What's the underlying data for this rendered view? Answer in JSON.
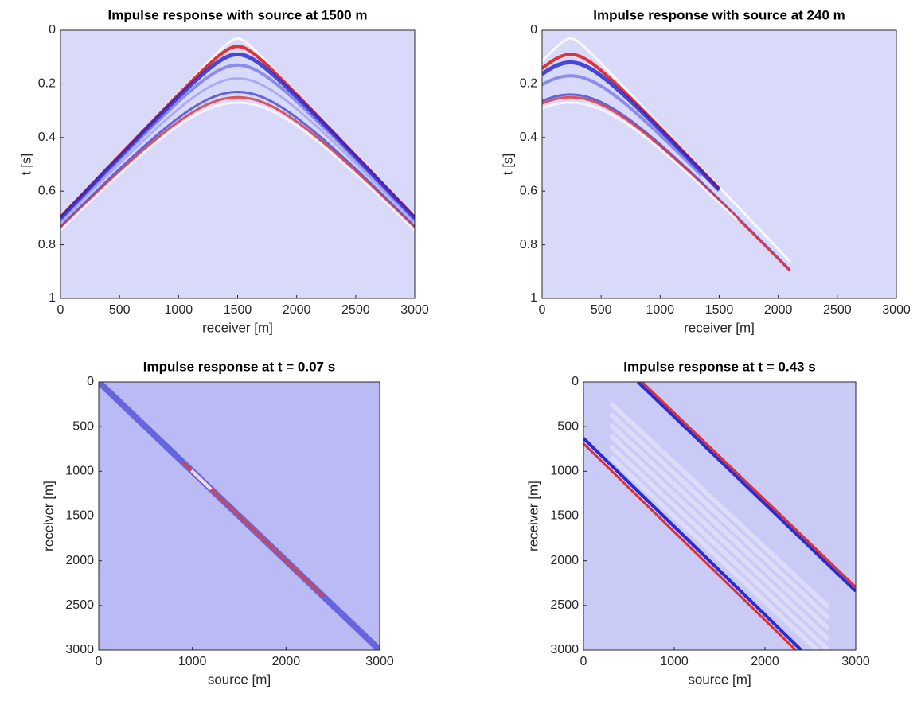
{
  "chart_data": [
    {
      "type": "heatmap",
      "title": "Impulse response with source at 1500 m",
      "xlabel": "receiver [m]",
      "ylabel": "t [s]",
      "xlim": [
        0,
        3000
      ],
      "ylim": [
        0,
        1
      ],
      "y_reversed": true,
      "xticks": [
        0,
        500,
        1000,
        1500,
        2000,
        2500,
        3000
      ],
      "yticks": [
        0,
        0.2,
        0.4,
        0.6,
        0.8,
        1
      ],
      "background": "#d9d9fa"
    },
    {
      "type": "heatmap",
      "title": "Impulse response with source  at 240 m",
      "xlabel": "receiver [m]",
      "ylabel": "t [s]",
      "xlim": [
        0,
        3000
      ],
      "ylim": [
        0,
        1
      ],
      "y_reversed": true,
      "xticks": [
        0,
        500,
        1000,
        1500,
        2000,
        2500,
        3000
      ],
      "yticks": [
        0,
        0.2,
        0.4,
        0.6,
        0.8,
        1
      ],
      "background": "#d9d9fa"
    },
    {
      "type": "heatmap",
      "title": "Impulse response at t = 0.07 s",
      "xlabel": "source [m]",
      "ylabel": "receiver [m]",
      "xlim": [
        0,
        3000
      ],
      "ylim": [
        0,
        3000
      ],
      "y_reversed": true,
      "xticks": [
        0,
        1000,
        2000,
        3000
      ],
      "yticks": [
        0,
        500,
        1000,
        1500,
        2000,
        2500,
        3000
      ],
      "background": "#babaf5"
    },
    {
      "type": "heatmap",
      "title": "Impulse response at t = 0.43 s",
      "xlabel": "source [m]",
      "ylabel": "receiver [m]",
      "xlim": [
        0,
        3000
      ],
      "ylim": [
        0,
        3000
      ],
      "y_reversed": true,
      "xticks": [
        0,
        1000,
        2000,
        3000
      ],
      "yticks": [
        0,
        500,
        1000,
        1500,
        2000,
        2500,
        3000
      ],
      "background": "#cacaf7"
    }
  ]
}
